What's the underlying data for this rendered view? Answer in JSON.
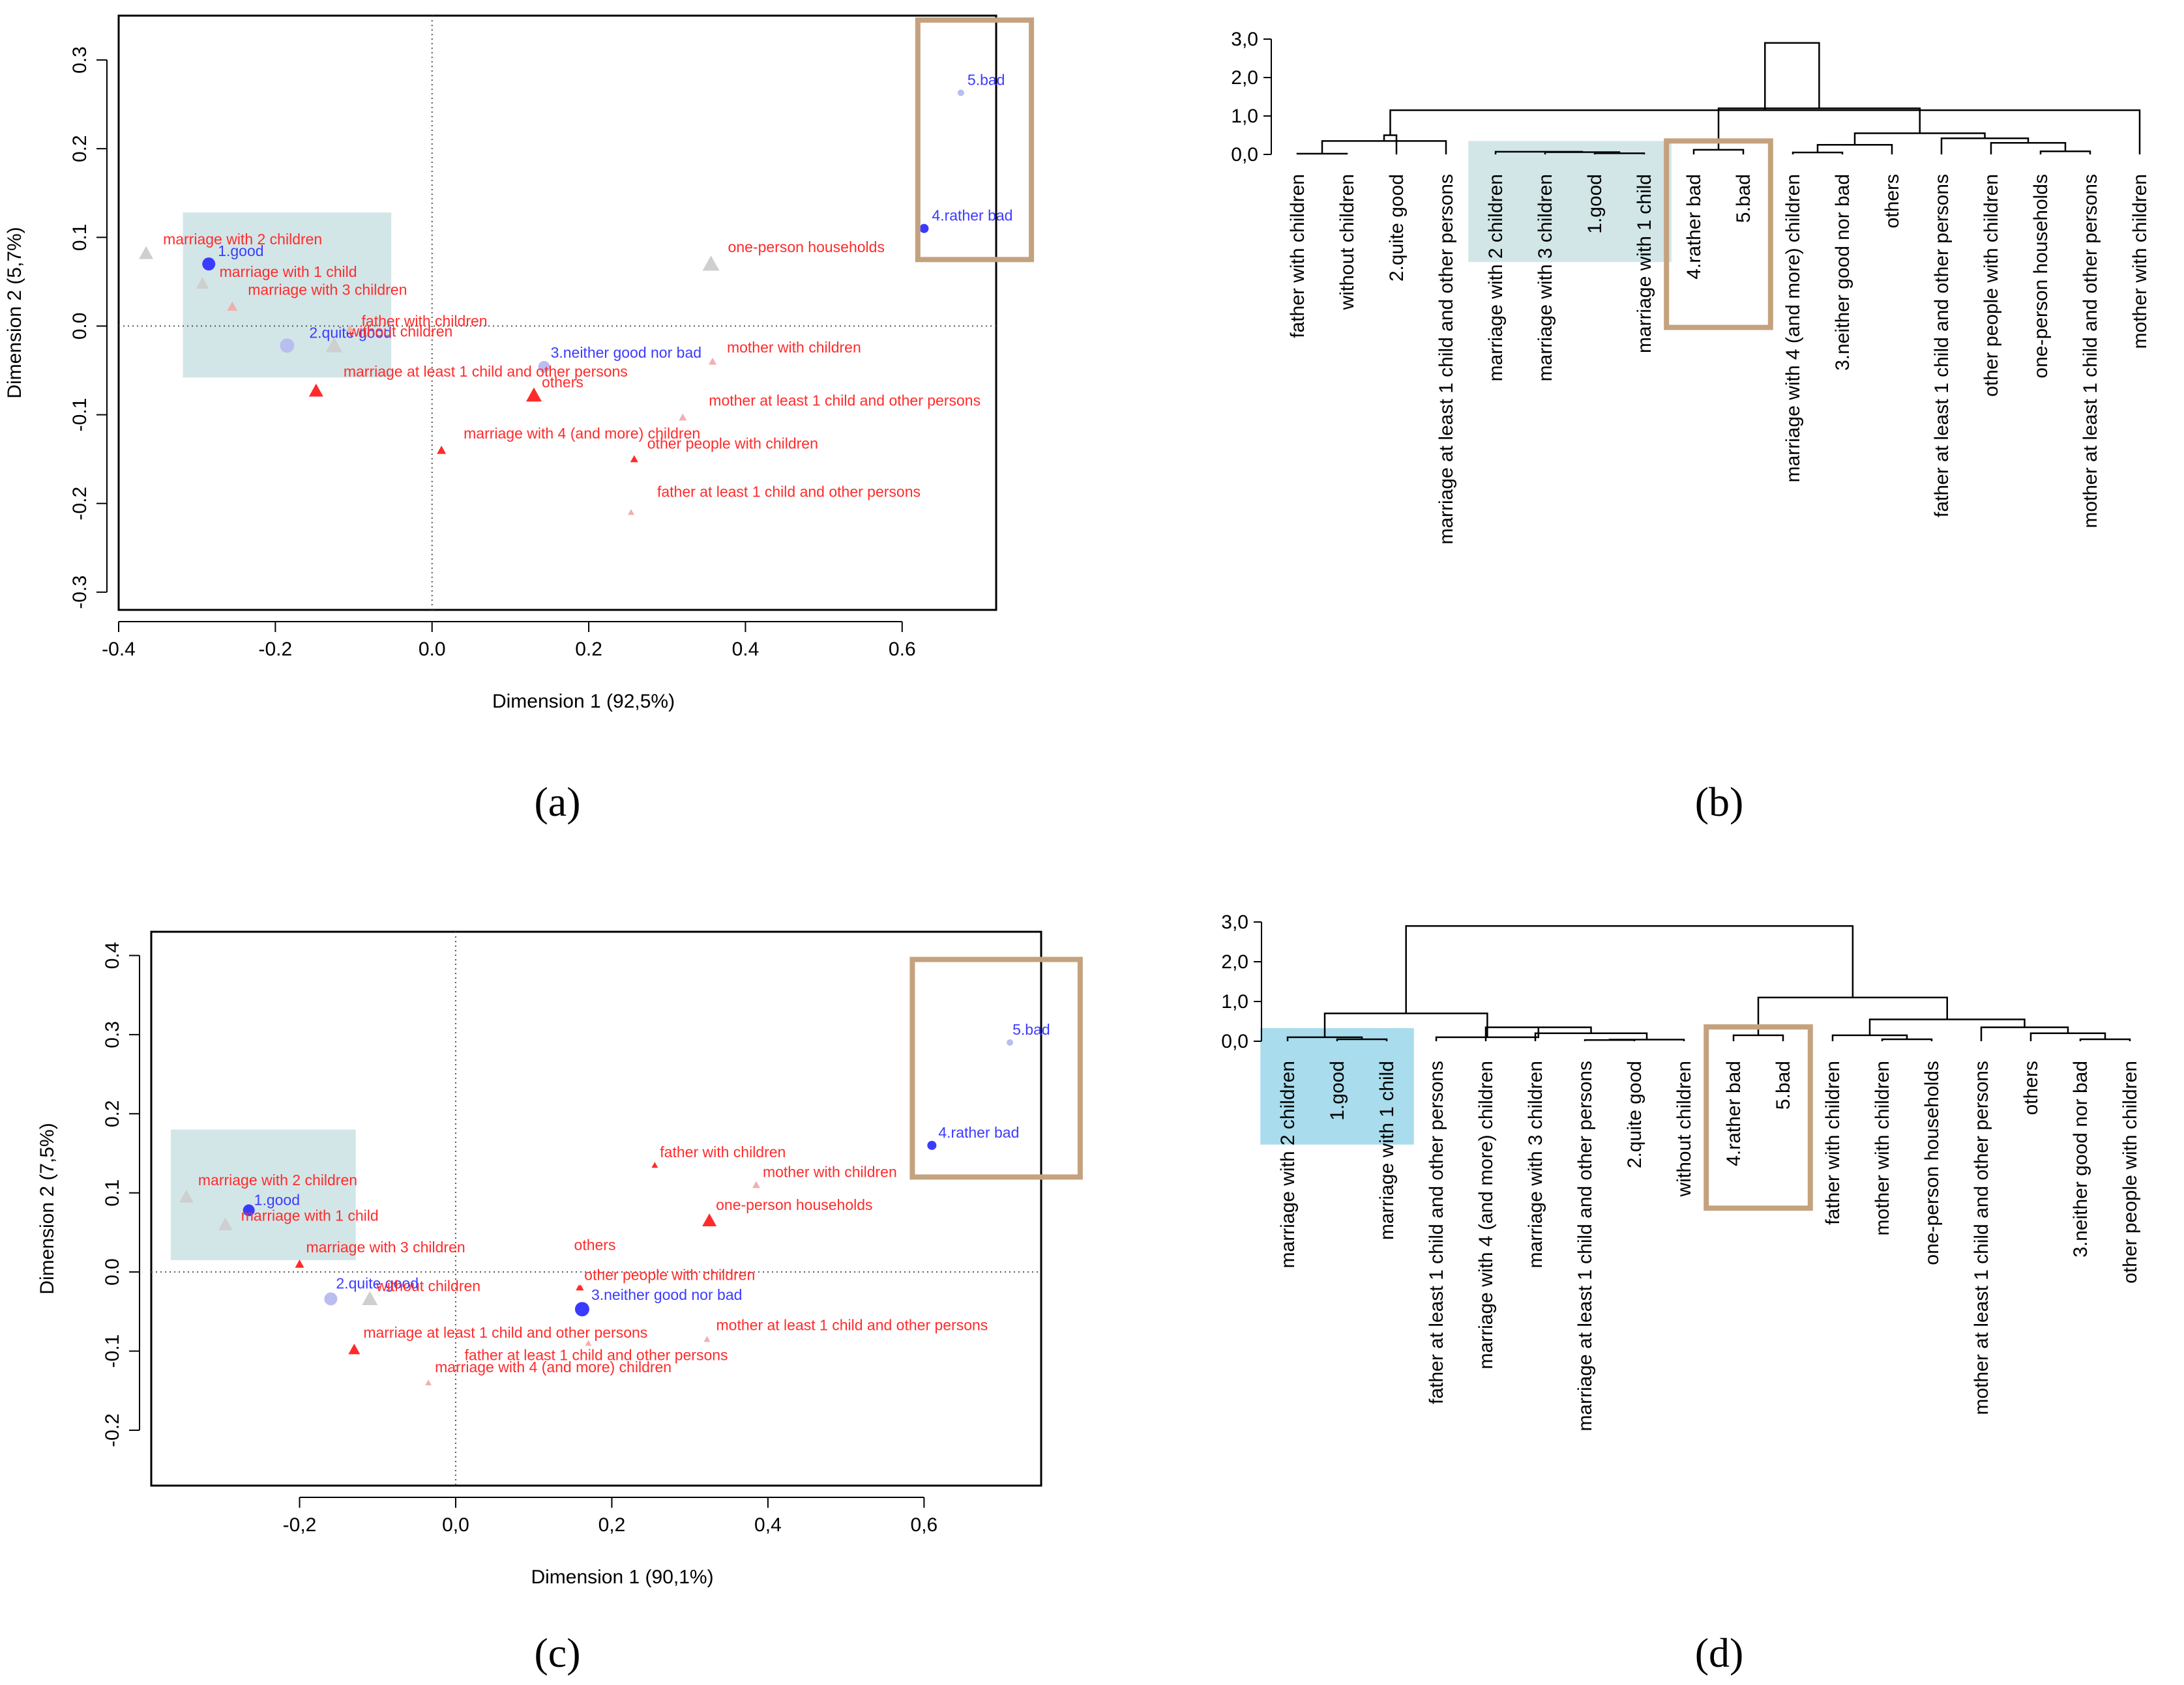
{
  "panel_labels": [
    "(a)",
    "(b)",
    "(c)",
    "(d)"
  ],
  "colors": {
    "row_points": "#3b3bff",
    "col_points": "#ff2b2b",
    "faint_points": "#c8c8c8",
    "highlight_box": "#c4a27e",
    "highlight_fill_light": "#d2e6e8",
    "highlight_fill_strong": "#a9dcec",
    "tree": "#000000"
  },
  "chart_data": [
    {
      "id": "a",
      "type": "scatter",
      "title": "",
      "xlabel": "Dimension 1 (92,5%)",
      "ylabel": "Dimension 2 (5,7%)",
      "xlim": [
        -0.4,
        0.72
      ],
      "ylim": [
        -0.32,
        0.35
      ],
      "xticks": [
        -0.4,
        -0.2,
        0.0,
        0.2,
        0.4,
        0.6
      ],
      "xtick_labels": [
        "-0.4",
        "-0.2",
        "0.0",
        "0.2",
        "0.4",
        "0.6"
      ],
      "yticks": [
        -0.3,
        -0.2,
        -0.1,
        0.0,
        0.1,
        0.2,
        0.3
      ],
      "ytick_labels": [
        "-0.3",
        "-0.2",
        "-0.1",
        "0.0",
        "0.1",
        "0.2",
        "0.3"
      ],
      "highlight_fill": {
        "x": [
          -0.318,
          -0.052
        ],
        "y": [
          -0.058,
          0.128
        ]
      },
      "highlight_box": {
        "x": [
          0.62,
          0.765
        ],
        "y": [
          0.075,
          0.345
        ]
      },
      "points": [
        {
          "label": "5.bad",
          "x": 0.675,
          "y": 0.263,
          "group": "row",
          "faint": true,
          "shape": "circle",
          "size": 5,
          "dx": 10,
          "dy": -12
        },
        {
          "label": "4.rather bad",
          "x": 0.628,
          "y": 0.11,
          "group": "row",
          "faint": false,
          "shape": "circle",
          "size": 7,
          "dx": 12,
          "dy": -12
        },
        {
          "label": "1.good",
          "x": -0.285,
          "y": 0.07,
          "group": "row",
          "faint": false,
          "shape": "circle",
          "size": 10,
          "dx": 14,
          "dy": -12
        },
        {
          "label": "2.quite good",
          "x": -0.185,
          "y": -0.022,
          "group": "row",
          "faint": true,
          "shape": "circle",
          "size": 11,
          "dx": 34,
          "dy": -12
        },
        {
          "label": "3.neither good nor bad",
          "x": 0.143,
          "y": -0.046,
          "group": "row",
          "faint": true,
          "shape": "circle",
          "size": 9,
          "dx": 10,
          "dy": -14
        },
        {
          "label": "marriage with 2 children",
          "x": -0.365,
          "y": 0.082,
          "group": "col",
          "faint": true,
          "shape": "triangle",
          "size": 11,
          "dx": 26,
          "dy": -14
        },
        {
          "label": "marriage with 1 child",
          "x": -0.293,
          "y": 0.048,
          "group": "col",
          "faint": true,
          "shape": "triangle",
          "size": 10,
          "dx": 26,
          "dy": -10
        },
        {
          "label": "marriage with 3 children",
          "x": -0.255,
          "y": 0.022,
          "group": "col",
          "faint": true,
          "shape": "triangle",
          "size": 8,
          "dx": 24,
          "dy": -18
        },
        {
          "label": "without children",
          "x": -0.125,
          "y": -0.022,
          "group": "col",
          "faint": true,
          "shape": "triangle",
          "size": 13,
          "dx": 22,
          "dy": -14
        },
        {
          "label": "father with children",
          "x": -0.105,
          "y": -0.003,
          "group": "col",
          "faint": true,
          "shape": "triangle",
          "size": 6,
          "dx": 18,
          "dy": -4
        },
        {
          "label": "marriage at least 1 child and other persons",
          "x": -0.148,
          "y": -0.073,
          "group": "col",
          "faint": false,
          "shape": "triangle",
          "size": 11,
          "dx": 42,
          "dy": -22
        },
        {
          "label": "others",
          "x": 0.13,
          "y": -0.078,
          "group": "col",
          "faint": false,
          "shape": "triangle",
          "size": 12,
          "dx": 12,
          "dy": -12
        },
        {
          "label": "marriage with 4 (and more) children",
          "x": 0.012,
          "y": -0.14,
          "group": "col",
          "faint": false,
          "shape": "triangle",
          "size": 7,
          "dx": 34,
          "dy": -18
        },
        {
          "label": "one-person households",
          "x": 0.356,
          "y": 0.07,
          "group": "col",
          "faint": true,
          "shape": "triangle",
          "size": 13,
          "dx": 26,
          "dy": -18
        },
        {
          "label": "mother with children",
          "x": 0.358,
          "y": -0.04,
          "group": "col",
          "faint": true,
          "shape": "triangle",
          "size": 6,
          "dx": 22,
          "dy": -14
        },
        {
          "label": "mother at least 1 child and other persons",
          "x": 0.32,
          "y": -0.103,
          "group": "col",
          "faint": true,
          "shape": "triangle",
          "size": 6,
          "dx": 40,
          "dy": -18
        },
        {
          "label": "other people with children",
          "x": 0.258,
          "y": -0.15,
          "group": "col",
          "faint": false,
          "shape": "triangle",
          "size": 6,
          "dx": 20,
          "dy": -16
        },
        {
          "label": "father at least 1 child and other persons",
          "x": 0.254,
          "y": -0.21,
          "group": "col",
          "faint": true,
          "shape": "triangle",
          "size": 5,
          "dx": 40,
          "dy": -24
        }
      ]
    },
    {
      "id": "b",
      "type": "dendrogram",
      "title": "",
      "ylim": [
        0,
        3.0
      ],
      "yticks": [
        0.0,
        1.0,
        2.0,
        3.0
      ],
      "ytick_labels": [
        "0,0",
        "1,0",
        "2,0",
        "3,0"
      ],
      "leaves": [
        "father with children",
        "without children",
        "2.quite good",
        "marriage at least 1 child and other persons",
        "marriage with 2 children",
        "marriage with 3 children",
        "1.good",
        "marriage with 1 child",
        "4.rather bad",
        "5.bad",
        "marriage with 4 (and more) children",
        "3.neither good nor bad",
        "others",
        "father at least 1 child and other persons",
        "other people with children",
        "one-person households",
        "mother at least 1 child and other persons",
        "mother with children"
      ],
      "merges": [
        [
          0,
          1,
          0.02
        ],
        [
          6,
          7,
          0.03
        ],
        [
          5,
          19,
          0.06
        ],
        [
          4,
          20,
          0.07
        ],
        [
          18,
          3,
          0.35
        ],
        [
          2,
          22,
          0.5
        ],
        [
          17,
          23,
          1.15
        ],
        [
          8,
          9,
          0.12
        ],
        [
          10,
          11,
          0.05
        ],
        [
          26,
          12,
          0.25
        ],
        [
          16,
          15,
          0.08
        ],
        [
          14,
          28,
          0.3
        ],
        [
          13,
          29,
          0.42
        ],
        [
          27,
          30,
          0.55
        ],
        [
          25,
          31,
          1.2
        ],
        [
          24,
          32,
          2.9
        ]
      ],
      "highlight_fill": {
        "leaves": [
          4,
          7
        ],
        "y": [
          -2.8,
          0.35
        ]
      },
      "highlight_box": {
        "leaves": [
          8,
          9
        ],
        "y": [
          -4.5,
          0.35
        ]
      }
    },
    {
      "id": "c",
      "type": "scatter",
      "title": "",
      "xlabel": "Dimension 1 (90,1%)",
      "ylabel": "Dimension 2 (7,5%)",
      "xlim": [
        -0.39,
        0.75
      ],
      "ylim": [
        -0.27,
        0.43
      ],
      "xticks": [
        -0.2,
        0.0,
        0.2,
        0.4,
        0.6
      ],
      "xtick_labels": [
        "-0,2",
        "0,0",
        "0,2",
        "0,4",
        "0,6"
      ],
      "yticks": [
        -0.2,
        -0.1,
        0.0,
        0.1,
        0.2,
        0.3,
        0.4
      ],
      "ytick_labels": [
        "-0.2",
        "-0.1",
        "0.0",
        "0.1",
        "0.2",
        "0.3",
        "0.4"
      ],
      "highlight_fill": {
        "x": [
          -0.365,
          -0.128
        ],
        "y": [
          0.015,
          0.18
        ]
      },
      "highlight_box": {
        "x": [
          0.585,
          0.8
        ],
        "y": [
          0.12,
          0.395
        ]
      },
      "points": [
        {
          "label": "5.bad",
          "x": 0.71,
          "y": 0.29,
          "group": "row",
          "faint": true,
          "shape": "circle",
          "size": 5,
          "dx": 4,
          "dy": -12
        },
        {
          "label": "4.rather bad",
          "x": 0.61,
          "y": 0.16,
          "group": "row",
          "faint": false,
          "shape": "circle",
          "size": 7,
          "dx": 10,
          "dy": -12
        },
        {
          "label": "1.good",
          "x": -0.265,
          "y": 0.078,
          "group": "row",
          "faint": false,
          "shape": "circle",
          "size": 9,
          "dx": 8,
          "dy": -8
        },
        {
          "label": "2.quite good",
          "x": -0.16,
          "y": -0.034,
          "group": "row",
          "faint": true,
          "shape": "circle",
          "size": 10,
          "dx": 8,
          "dy": -16
        },
        {
          "label": "3.neither good nor bad",
          "x": 0.162,
          "y": -0.047,
          "group": "row",
          "faint": false,
          "shape": "circle",
          "size": 11,
          "dx": 14,
          "dy": -14
        },
        {
          "label": "marriage with 2 children",
          "x": -0.345,
          "y": 0.095,
          "group": "col",
          "faint": true,
          "shape": "triangle",
          "size": 11,
          "dx": 18,
          "dy": -18
        },
        {
          "label": "marriage with 1 child",
          "x": -0.295,
          "y": 0.06,
          "group": "col",
          "faint": true,
          "shape": "triangle",
          "size": 11,
          "dx": 24,
          "dy": -6
        },
        {
          "label": "marriage with 3 children",
          "x": -0.2,
          "y": 0.01,
          "group": "col",
          "faint": false,
          "shape": "triangle",
          "size": 7,
          "dx": 10,
          "dy": -18
        },
        {
          "label": "without children",
          "x": -0.11,
          "y": -0.034,
          "group": "col",
          "faint": true,
          "shape": "triangle",
          "size": 12,
          "dx": 10,
          "dy": -12
        },
        {
          "label": "marriage at least 1 child and other persons",
          "x": -0.13,
          "y": -0.098,
          "group": "col",
          "faint": false,
          "shape": "triangle",
          "size": 9,
          "dx": 14,
          "dy": -18
        },
        {
          "label": "father at least 1 child and other persons",
          "x": 0.17,
          "y": -0.09,
          "group": "col",
          "faint": true,
          "shape": "triangle",
          "size": 5,
          "dx": -190,
          "dy": 26
        },
        {
          "label": "marriage with 4 (and more) children",
          "x": -0.035,
          "y": -0.14,
          "group": "col",
          "faint": true,
          "shape": "triangle",
          "size": 5,
          "dx": 10,
          "dy": -16
        },
        {
          "label": "others",
          "x": 0.16,
          "y": -0.02,
          "group": "col",
          "faint": false,
          "shape": "triangle",
          "size": 5,
          "dx": -10,
          "dy": -58
        },
        {
          "label": "other people with children",
          "x": 0.158,
          "y": -0.02,
          "group": "col",
          "faint": false,
          "shape": "triangle",
          "size": 5,
          "dx": 8,
          "dy": -12
        },
        {
          "label": "father with children",
          "x": 0.255,
          "y": 0.135,
          "group": "col",
          "faint": false,
          "shape": "triangle",
          "size": 5,
          "dx": 8,
          "dy": -12
        },
        {
          "label": "mother with children",
          "x": 0.385,
          "y": 0.11,
          "group": "col",
          "faint": true,
          "shape": "triangle",
          "size": 6,
          "dx": 10,
          "dy": -12
        },
        {
          "label": "one-person households",
          "x": 0.325,
          "y": 0.065,
          "group": "col",
          "faint": false,
          "shape": "triangle",
          "size": 11,
          "dx": 10,
          "dy": -16
        },
        {
          "label": "mother at least 1 child and other persons",
          "x": 0.322,
          "y": -0.085,
          "group": "col",
          "faint": true,
          "shape": "triangle",
          "size": 5,
          "dx": 14,
          "dy": -14
        }
      ]
    },
    {
      "id": "d",
      "type": "dendrogram",
      "title": "",
      "ylim": [
        0,
        3.0
      ],
      "yticks": [
        0.0,
        1.0,
        2.0,
        3.0
      ],
      "ytick_labels": [
        "0,0",
        "1,0",
        "2,0",
        "3,0"
      ],
      "leaves": [
        "marriage with 2 children",
        "1.good",
        "marriage with 1 child",
        "father at least 1 child and other persons",
        "marriage with 4 (and more) children",
        "marriage with 3 children",
        "marriage at least 1 child and other persons",
        "2.quite good",
        "without children",
        "4.rather bad",
        "5.bad",
        "father with children",
        "mother with children",
        "one-person households",
        "mother at least 1 child and other persons",
        "others",
        "3.neither good nor bad",
        "other people with children"
      ],
      "merges": [
        [
          1,
          2,
          0.05
        ],
        [
          0,
          18,
          0.1
        ],
        [
          6,
          7,
          0.03
        ],
        [
          20,
          8,
          0.04
        ],
        [
          5,
          21,
          0.2
        ],
        [
          4,
          22,
          0.35
        ],
        [
          3,
          23,
          0.1
        ],
        [
          19,
          24,
          0.7
        ],
        [
          9,
          10,
          0.15
        ],
        [
          12,
          13,
          0.05
        ],
        [
          11,
          27,
          0.15
        ],
        [
          16,
          17,
          0.05
        ],
        [
          15,
          29,
          0.2
        ],
        [
          14,
          30,
          0.35
        ],
        [
          28,
          31,
          0.55
        ],
        [
          26,
          32,
          1.1
        ],
        [
          25,
          33,
          2.9
        ]
      ],
      "highlight_fill": {
        "leaves": [
          0,
          2
        ],
        "y": [
          -2.6,
          0.33
        ]
      },
      "highlight_box": {
        "leaves": [
          9,
          10
        ],
        "y": [
          -4.2,
          0.36
        ]
      }
    }
  ]
}
